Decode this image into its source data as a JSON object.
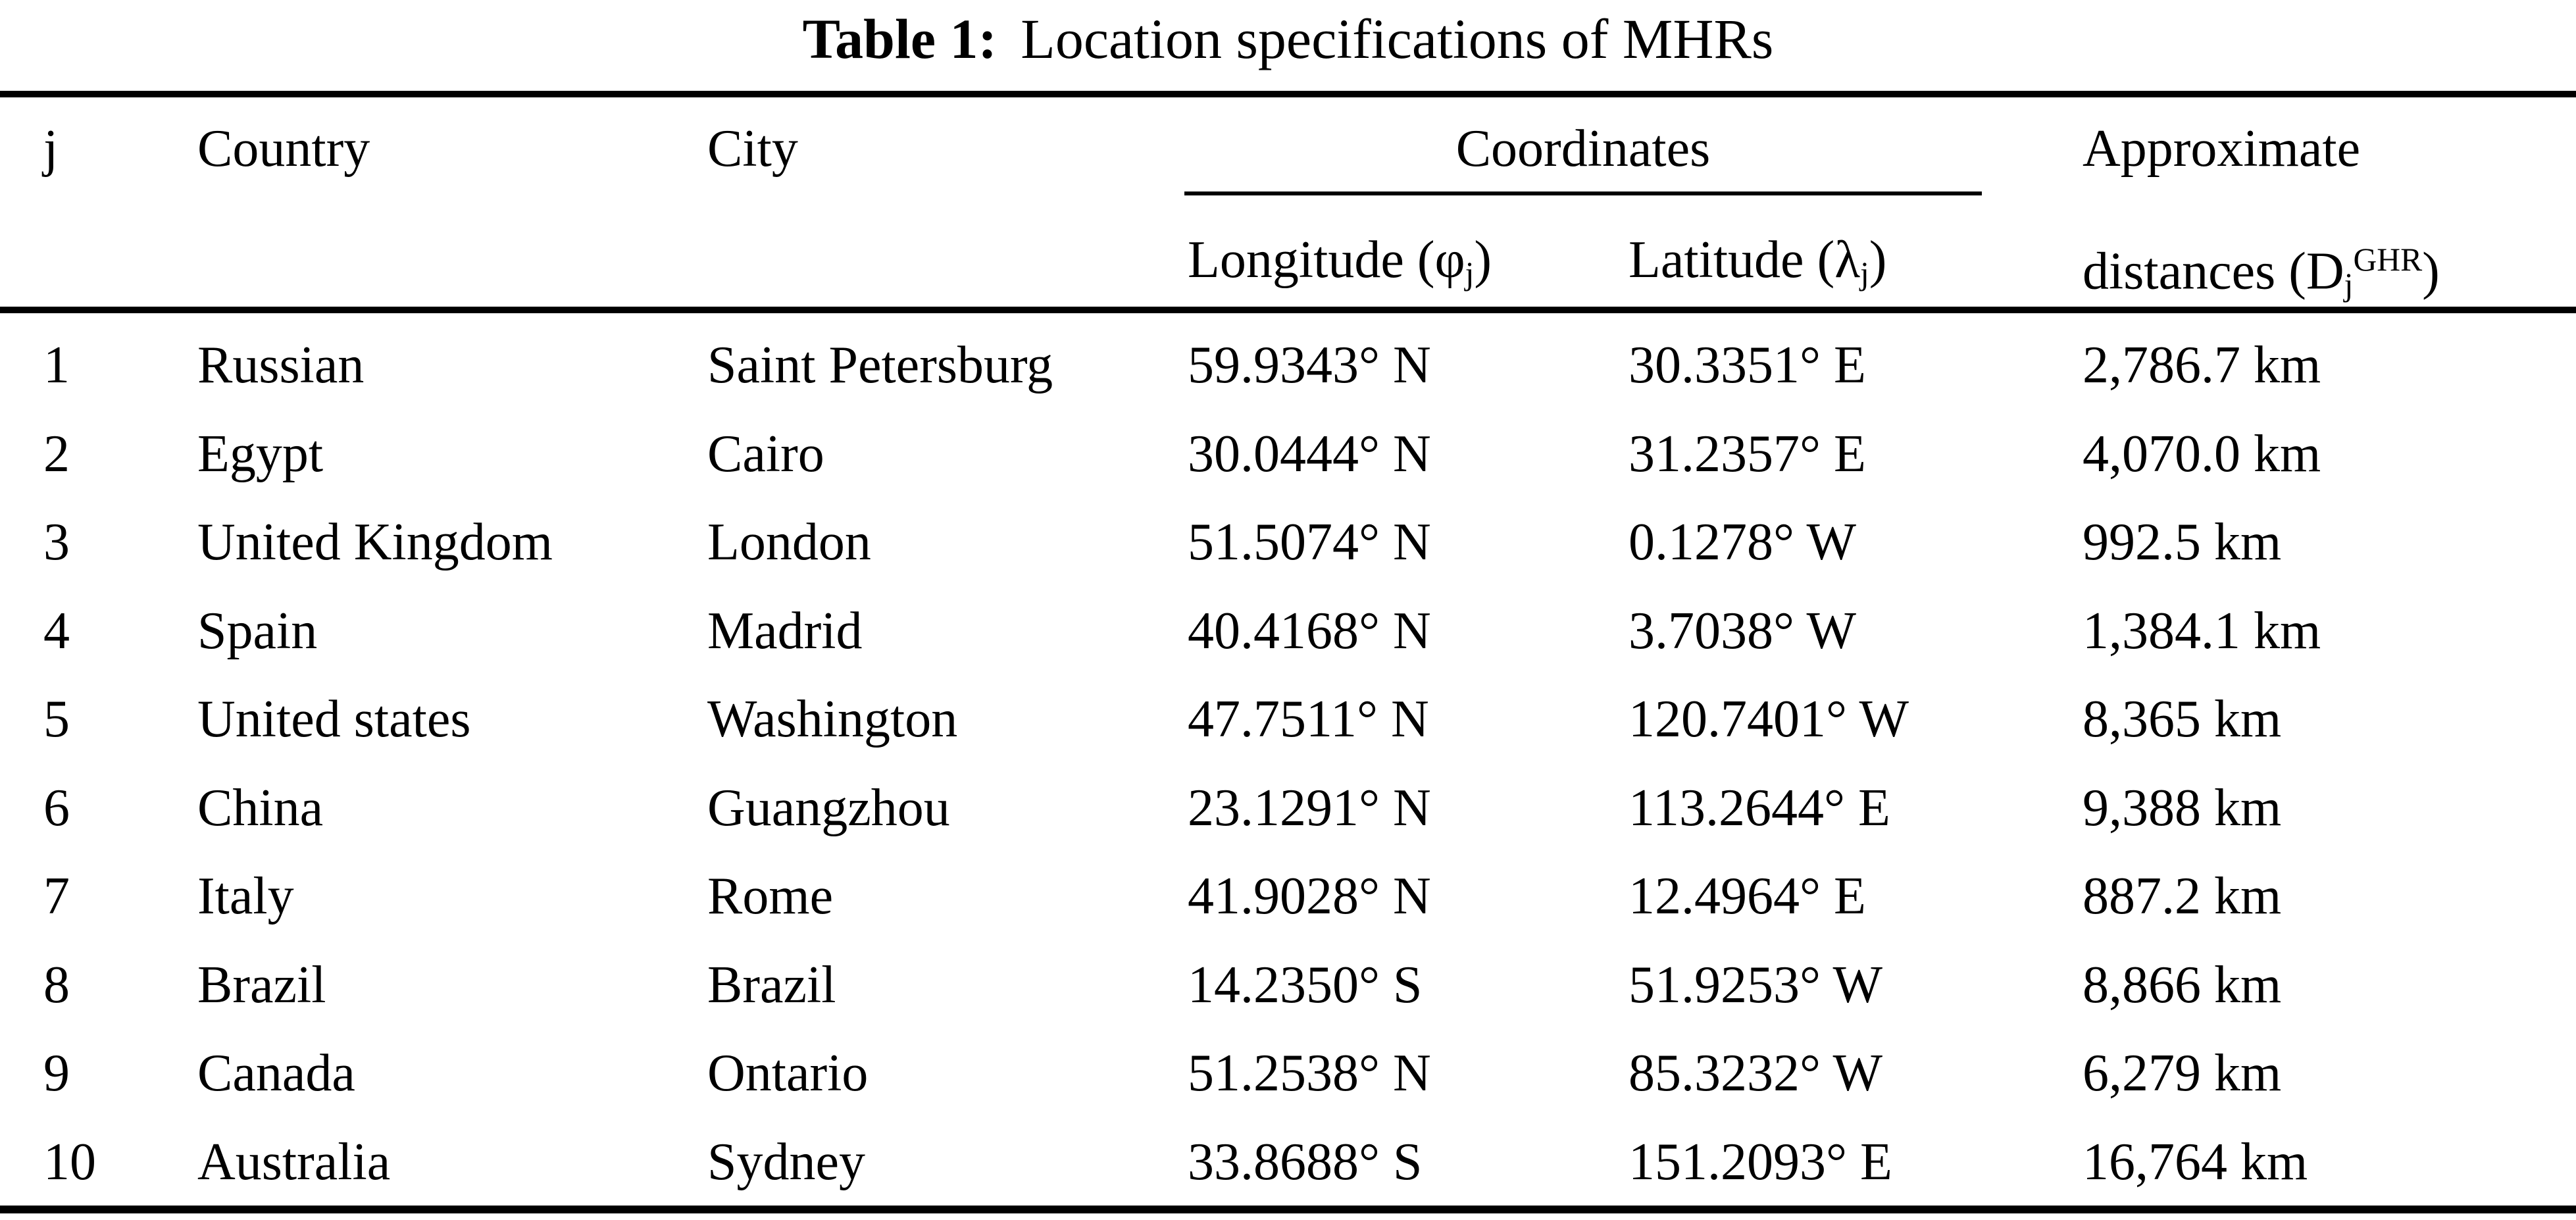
{
  "title": {
    "label": "Table 1:",
    "text": "Location specifications of MHRs"
  },
  "header": {
    "j": "j",
    "country": "Country",
    "city": "City",
    "coordinates": "Coordinates",
    "longitude_pre": "Longitude (φ",
    "longitude_sub": "j",
    "longitude_post": ")",
    "latitude_pre": "Latitude (λ",
    "latitude_sub": "j",
    "latitude_post": ")",
    "distance_line1": "Approximate",
    "distance_line2_pre": "distances (D",
    "distance_sub": "j",
    "distance_sup": "GHR",
    "distance_post": ")"
  },
  "rows": [
    {
      "j": "1",
      "country": "Russian",
      "city": "Saint Petersburg",
      "longitude": "59.9343° N",
      "latitude": "30.3351° E",
      "distance": "2,786.7 km"
    },
    {
      "j": "2",
      "country": "Egypt",
      "city": "Cairo",
      "longitude": "30.0444° N",
      "latitude": "31.2357° E",
      "distance": "4,070.0 km"
    },
    {
      "j": "3",
      "country": "United Kingdom",
      "city": "London",
      "longitude": "51.5074° N",
      "latitude": "0.1278° W",
      "distance": "992.5 km"
    },
    {
      "j": "4",
      "country": "Spain",
      "city": "Madrid",
      "longitude": "40.4168° N",
      "latitude": "3.7038° W",
      "distance": "1,384.1 km"
    },
    {
      "j": "5",
      "country": "United states",
      "city": "Washington",
      "longitude": "47.7511° N",
      "latitude": "120.7401° W",
      "distance": "8,365 km"
    },
    {
      "j": "6",
      "country": "China",
      "city": "Guangzhou",
      "longitude": "23.1291° N",
      "latitude": "113.2644° E",
      "distance": "9,388 km"
    },
    {
      "j": "7",
      "country": "Italy",
      "city": "Rome",
      "longitude": "41.9028° N",
      "latitude": "12.4964° E",
      "distance": "887.2 km"
    },
    {
      "j": "8",
      "country": "Brazil",
      "city": "Brazil",
      "longitude": "14.2350° S",
      "latitude": "51.9253° W",
      "distance": "8,866 km"
    },
    {
      "j": "9",
      "country": "Canada",
      "city": "Ontario",
      "longitude": "51.2538° N",
      "latitude": "85.3232° W",
      "distance": "6,279 km"
    },
    {
      "j": "10",
      "country": "Australia",
      "city": "Sydney",
      "longitude": "33.8688° S",
      "latitude": "151.2093° E",
      "distance": "16,764 km"
    }
  ]
}
